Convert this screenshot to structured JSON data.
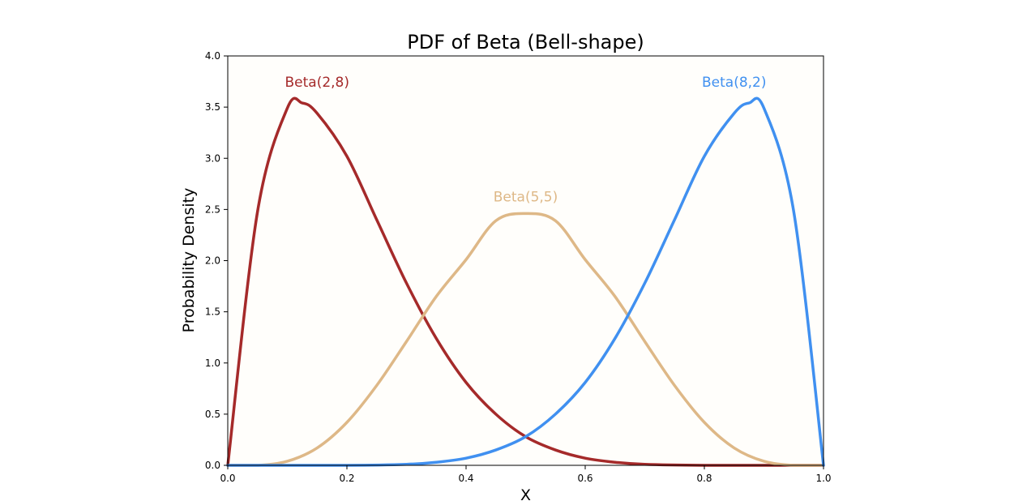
{
  "chart_data": {
    "type": "line",
    "title": "PDF of Beta (Bell-shape)",
    "xlabel": "X",
    "ylabel": "Probability Density",
    "xlim": [
      0.0,
      1.0
    ],
    "ylim": [
      0.0,
      4.0
    ],
    "x_ticks": [
      "0.0",
      "0.2",
      "0.4",
      "0.6",
      "0.8",
      "1.0"
    ],
    "y_ticks": [
      "0.0",
      "0.5",
      "1.0",
      "1.5",
      "2.0",
      "2.5",
      "3.0",
      "3.5",
      "4.0"
    ],
    "grid": false,
    "legend": "none",
    "series": [
      {
        "name": "Beta(2,8)",
        "color": "#a52a2a",
        "label_at": [
          0.15,
          3.7
        ],
        "points": [
          [
            0.0,
            0.0
          ],
          [
            0.05,
            2.48
          ],
          [
            0.1,
            3.49
          ],
          [
            0.125,
            3.54
          ],
          [
            0.15,
            3.44
          ],
          [
            0.2,
            3.02
          ],
          [
            0.25,
            2.4
          ],
          [
            0.3,
            1.78
          ],
          [
            0.35,
            1.24
          ],
          [
            0.4,
            0.81
          ],
          [
            0.45,
            0.5
          ],
          [
            0.5,
            0.28
          ],
          [
            0.55,
            0.15
          ],
          [
            0.6,
            0.07
          ],
          [
            0.65,
            0.03
          ],
          [
            0.7,
            0.01
          ],
          [
            0.8,
            0.0
          ],
          [
            0.9,
            0.0
          ],
          [
            1.0,
            0.0
          ]
        ]
      },
      {
        "name": "Beta(5,5)",
        "color": "#deb887",
        "label_at": [
          0.5,
          2.58
        ],
        "points": [
          [
            0.0,
            0.0
          ],
          [
            0.05,
            0.0
          ],
          [
            0.1,
            0.04
          ],
          [
            0.15,
            0.17
          ],
          [
            0.2,
            0.42
          ],
          [
            0.25,
            0.78
          ],
          [
            0.3,
            1.21
          ],
          [
            0.35,
            1.65
          ],
          [
            0.4,
            2.01
          ],
          [
            0.45,
            2.39
          ],
          [
            0.5,
            2.46
          ],
          [
            0.55,
            2.39
          ],
          [
            0.6,
            2.01
          ],
          [
            0.65,
            1.65
          ],
          [
            0.7,
            1.21
          ],
          [
            0.75,
            0.78
          ],
          [
            0.8,
            0.42
          ],
          [
            0.85,
            0.17
          ],
          [
            0.9,
            0.04
          ],
          [
            0.95,
            0.0
          ],
          [
            1.0,
            0.0
          ]
        ]
      },
      {
        "name": "Beta(8,2)",
        "color": "#4090f0",
        "label_at": [
          0.85,
          3.7
        ],
        "points": [
          [
            0.0,
            0.0
          ],
          [
            0.2,
            0.0
          ],
          [
            0.3,
            0.01
          ],
          [
            0.35,
            0.03
          ],
          [
            0.4,
            0.07
          ],
          [
            0.45,
            0.15
          ],
          [
            0.5,
            0.28
          ],
          [
            0.55,
            0.5
          ],
          [
            0.6,
            0.81
          ],
          [
            0.65,
            1.24
          ],
          [
            0.7,
            1.78
          ],
          [
            0.75,
            2.4
          ],
          [
            0.8,
            3.02
          ],
          [
            0.85,
            3.44
          ],
          [
            0.875,
            3.54
          ],
          [
            0.9,
            3.49
          ],
          [
            0.95,
            2.48
          ],
          [
            1.0,
            0.0
          ]
        ]
      }
    ]
  }
}
